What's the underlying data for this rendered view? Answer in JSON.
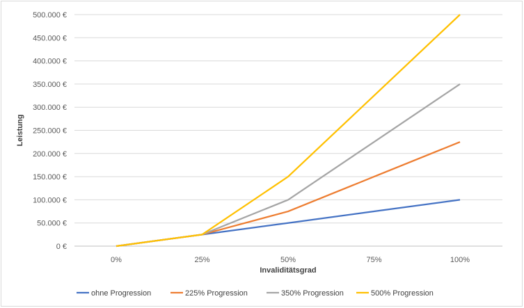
{
  "chart_data": {
    "type": "line",
    "title": "",
    "xlabel": "Invaliditätsgrad",
    "ylabel": "Leistung",
    "categories": [
      "0%",
      "25%",
      "50%",
      "75%",
      "100%"
    ],
    "x_positions": [
      0,
      25,
      50,
      75,
      100
    ],
    "ylim": [
      0,
      500000
    ],
    "yticks": [
      0,
      50000,
      100000,
      150000,
      200000,
      250000,
      300000,
      350000,
      400000,
      450000,
      500000
    ],
    "ytick_labels": [
      "0 €",
      "50.000 €",
      "100.000 €",
      "150.000 €",
      "200.000 €",
      "250.000 €",
      "300.000 €",
      "350.000 €",
      "400.000 €",
      "450.000 €",
      "500.000 €"
    ],
    "grid": true,
    "legend_position": "bottom",
    "series": [
      {
        "name": "ohne Progression",
        "color": "#4472c4",
        "values": [
          0,
          25000,
          50000,
          75000,
          100000
        ]
      },
      {
        "name": "225% Progression",
        "color": "#ed7d31",
        "values": [
          0,
          25000,
          75000,
          150000,
          225000
        ]
      },
      {
        "name": "350% Progression",
        "color": "#a5a5a5",
        "values": [
          0,
          25000,
          100000,
          225000,
          350000
        ]
      },
      {
        "name": "500% Progression",
        "color": "#ffc000",
        "values": [
          0,
          25000,
          150000,
          325000,
          500000
        ]
      }
    ]
  }
}
